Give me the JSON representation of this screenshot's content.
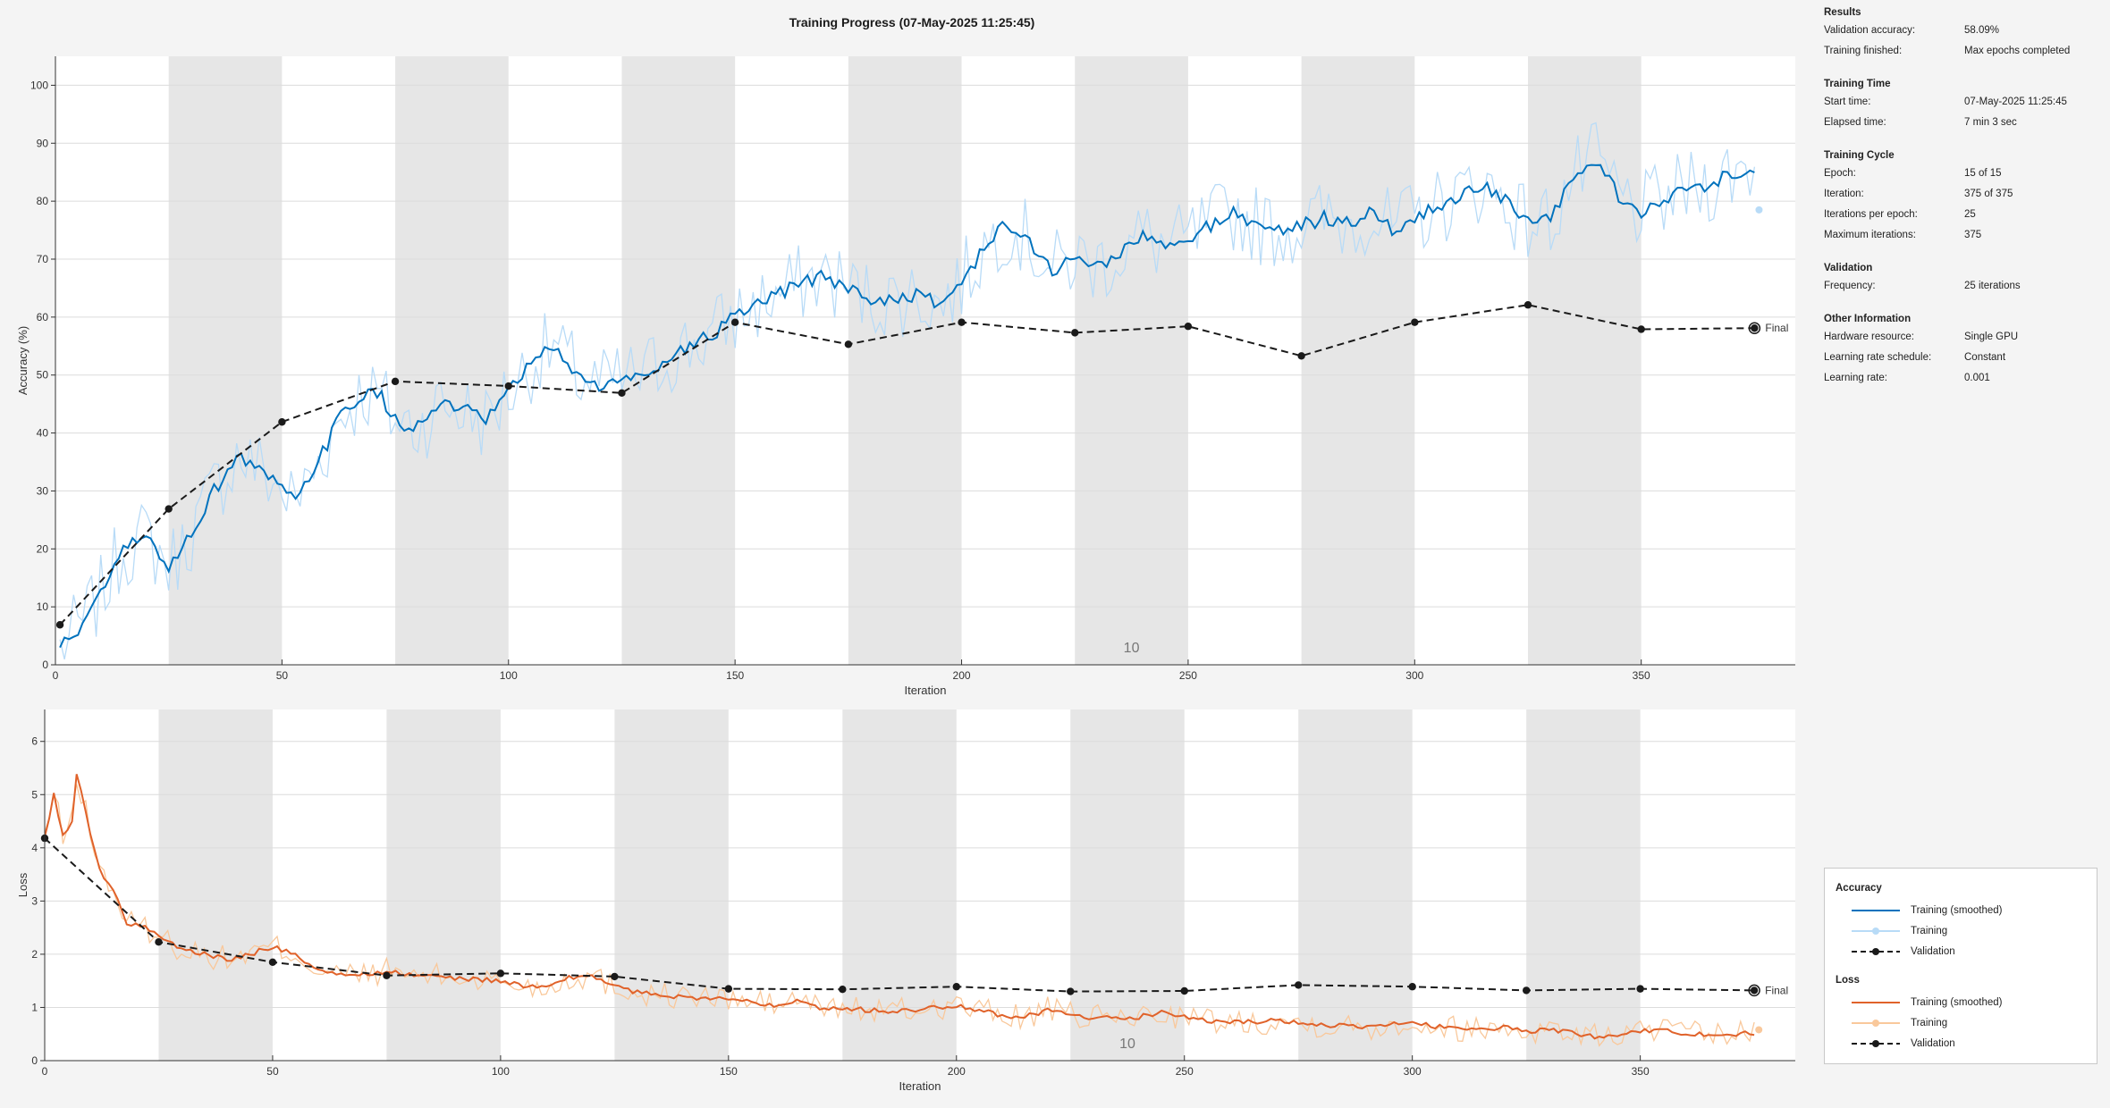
{
  "title": "Training Progress (07-May-2025 11:25:45)",
  "colors": {
    "smoothed_acc": "#0072bd",
    "raw_acc": "#b8dbf7",
    "smoothed_loss": "#e0622a",
    "raw_loss": "#f9c89b",
    "validation": "#1a1a1a",
    "epoch_band": "#e6e6e6",
    "plot_bg": "#ffffff"
  },
  "info": {
    "results": {
      "title": "Results",
      "rows": [
        {
          "k": "Validation accuracy:",
          "v": "58.09%"
        },
        {
          "k": "Training finished:",
          "v": "Max epochs completed"
        }
      ]
    },
    "time": {
      "title": "Training Time",
      "rows": [
        {
          "k": "Start time:",
          "v": "07-May-2025 11:25:45"
        },
        {
          "k": "Elapsed time:",
          "v": "7 min 3 sec"
        }
      ]
    },
    "cycle": {
      "title": "Training Cycle",
      "rows": [
        {
          "k": "Epoch:",
          "v": "15 of 15"
        },
        {
          "k": "Iteration:",
          "v": "375 of 375"
        },
        {
          "k": "Iterations per epoch:",
          "v": "25"
        },
        {
          "k": "Maximum iterations:",
          "v": "375"
        }
      ]
    },
    "validation": {
      "title": "Validation",
      "rows": [
        {
          "k": "Frequency:",
          "v": "25 iterations"
        }
      ]
    },
    "other": {
      "title": "Other Information",
      "rows": [
        {
          "k": "Hardware resource:",
          "v": "Single GPU"
        },
        {
          "k": "Learning rate schedule:",
          "v": "Constant"
        },
        {
          "k": "Learning rate:",
          "v": "0.001"
        }
      ]
    }
  },
  "legend": {
    "acc_title": "Accuracy",
    "loss_title": "Loss",
    "smoothed": "Training (smoothed)",
    "training": "Training",
    "validation": "Validation"
  },
  "chart_data": [
    {
      "type": "line",
      "name": "Accuracy",
      "xlabel": "Iteration",
      "ylabel": "Accuracy (%)",
      "xlim": [
        0,
        384
      ],
      "ylim": [
        0,
        105
      ],
      "xticks": [
        0,
        50,
        100,
        150,
        200,
        250,
        300,
        350
      ],
      "yticks": [
        0,
        10,
        20,
        30,
        40,
        50,
        60,
        70,
        80,
        90,
        100
      ],
      "grid": true,
      "epoch_label": "10",
      "final_label": "Final",
      "epoch_bands": [
        [
          25,
          50
        ],
        [
          75,
          100
        ],
        [
          125,
          150
        ],
        [
          175,
          200
        ],
        [
          225,
          250
        ],
        [
          275,
          300
        ],
        [
          325,
          350
        ]
      ],
      "smoothed_anchors": [
        [
          1,
          3
        ],
        [
          5,
          6
        ],
        [
          10,
          12
        ],
        [
          15,
          20
        ],
        [
          20,
          22
        ],
        [
          25,
          17
        ],
        [
          28,
          20
        ],
        [
          35,
          30
        ],
        [
          40,
          36
        ],
        [
          45,
          34
        ],
        [
          50,
          30
        ],
        [
          53,
          28
        ],
        [
          58,
          35
        ],
        [
          63,
          43
        ],
        [
          68,
          47
        ],
        [
          72,
          46
        ],
        [
          75,
          42
        ],
        [
          80,
          41
        ],
        [
          85,
          45
        ],
        [
          90,
          44
        ],
        [
          95,
          42
        ],
        [
          100,
          47
        ],
        [
          105,
          52
        ],
        [
          110,
          55
        ],
        [
          115,
          50
        ],
        [
          120,
          48
        ],
        [
          125,
          49
        ],
        [
          130,
          50
        ],
        [
          135,
          53
        ],
        [
          140,
          55
        ],
        [
          145,
          57
        ],
        [
          150,
          60
        ],
        [
          155,
          62
        ],
        [
          160,
          64
        ],
        [
          165,
          66
        ],
        [
          170,
          67
        ],
        [
          175,
          65
        ],
        [
          180,
          63
        ],
        [
          185,
          63
        ],
        [
          190,
          64
        ],
        [
          195,
          62
        ],
        [
          200,
          66
        ],
        [
          205,
          72
        ],
        [
          210,
          76
        ],
        [
          215,
          73
        ],
        [
          220,
          68
        ],
        [
          225,
          70
        ],
        [
          230,
          69
        ],
        [
          235,
          71
        ],
        [
          240,
          74
        ],
        [
          245,
          72
        ],
        [
          250,
          73
        ],
        [
          255,
          76
        ],
        [
          260,
          78
        ],
        [
          265,
          76
        ],
        [
          270,
          75
        ],
        [
          275,
          76
        ],
        [
          280,
          77
        ],
        [
          285,
          76
        ],
        [
          290,
          78
        ],
        [
          295,
          75
        ],
        [
          300,
          77
        ],
        [
          305,
          79
        ],
        [
          310,
          81
        ],
        [
          315,
          83
        ],
        [
          320,
          80
        ],
        [
          325,
          76
        ],
        [
          330,
          77
        ],
        [
          335,
          84
        ],
        [
          340,
          87
        ],
        [
          345,
          81
        ],
        [
          350,
          78
        ],
        [
          355,
          80
        ],
        [
          360,
          82
        ],
        [
          365,
          83
        ],
        [
          370,
          85
        ],
        [
          375,
          86
        ]
      ],
      "raw_noise": 7,
      "raw_last": 78.5,
      "validation": {
        "x": [
          1,
          25,
          50,
          75,
          100,
          125,
          150,
          175,
          200,
          225,
          250,
          275,
          300,
          325,
          350,
          375
        ],
        "y": [
          6.9,
          26.9,
          41.9,
          48.9,
          48.1,
          46.9,
          59.1,
          55.3,
          59.1,
          57.3,
          58.4,
          53.3,
          59.1,
          62.1,
          57.9,
          58.09
        ]
      }
    },
    {
      "type": "line",
      "name": "Loss",
      "xlabel": "Iteration",
      "ylabel": "Loss",
      "xlim": [
        0,
        384
      ],
      "ylim": [
        0,
        6.6
      ],
      "xticks": [
        0,
        50,
        100,
        150,
        200,
        250,
        300,
        350
      ],
      "yticks": [
        0,
        1,
        2,
        3,
        4,
        5,
        6
      ],
      "grid": true,
      "epoch_label": "10",
      "final_label": "Final",
      "epoch_bands": [
        [
          25,
          50
        ],
        [
          75,
          100
        ],
        [
          125,
          150
        ],
        [
          175,
          200
        ],
        [
          225,
          250
        ],
        [
          275,
          300
        ],
        [
          325,
          350
        ]
      ],
      "smoothed_anchors": [
        [
          0,
          4.2
        ],
        [
          2,
          5.0
        ],
        [
          4,
          4.2
        ],
        [
          6,
          4.5
        ],
        [
          7,
          5.4
        ],
        [
          10,
          4.3
        ],
        [
          12,
          3.6
        ],
        [
          15,
          3.2
        ],
        [
          18,
          2.6
        ],
        [
          22,
          2.5
        ],
        [
          25,
          2.35
        ],
        [
          30,
          2.1
        ],
        [
          35,
          2.0
        ],
        [
          40,
          1.9
        ],
        [
          45,
          2.0
        ],
        [
          50,
          2.15
        ],
        [
          55,
          2.0
        ],
        [
          60,
          1.7
        ],
        [
          65,
          1.6
        ],
        [
          70,
          1.62
        ],
        [
          75,
          1.68
        ],
        [
          80,
          1.62
        ],
        [
          90,
          1.55
        ],
        [
          100,
          1.5
        ],
        [
          105,
          1.4
        ],
        [
          110,
          1.38
        ],
        [
          115,
          1.55
        ],
        [
          120,
          1.6
        ],
        [
          125,
          1.4
        ],
        [
          130,
          1.28
        ],
        [
          140,
          1.2
        ],
        [
          150,
          1.15
        ],
        [
          155,
          1.1
        ],
        [
          160,
          1.05
        ],
        [
          165,
          1.15
        ],
        [
          170,
          1.0
        ],
        [
          175,
          1.0
        ],
        [
          180,
          0.95
        ],
        [
          190,
          0.93
        ],
        [
          195,
          1.0
        ],
        [
          200,
          1.05
        ],
        [
          205,
          0.95
        ],
        [
          210,
          0.85
        ],
        [
          215,
          0.82
        ],
        [
          220,
          0.95
        ],
        [
          225,
          0.85
        ],
        [
          230,
          0.8
        ],
        [
          240,
          0.82
        ],
        [
          245,
          0.9
        ],
        [
          250,
          0.82
        ],
        [
          255,
          0.75
        ],
        [
          260,
          0.72
        ],
        [
          270,
          0.75
        ],
        [
          275,
          0.72
        ],
        [
          280,
          0.68
        ],
        [
          290,
          0.62
        ],
        [
          300,
          0.72
        ],
        [
          305,
          0.65
        ],
        [
          310,
          0.6
        ],
        [
          320,
          0.62
        ],
        [
          325,
          0.55
        ],
        [
          330,
          0.6
        ],
        [
          340,
          0.45
        ],
        [
          345,
          0.5
        ],
        [
          350,
          0.55
        ],
        [
          355,
          0.6
        ],
        [
          360,
          0.5
        ],
        [
          365,
          0.48
        ],
        [
          370,
          0.5
        ],
        [
          375,
          0.52
        ]
      ],
      "raw_noise": 0.25,
      "raw_last": 0.58,
      "validation": {
        "x": [
          0,
          25,
          50,
          75,
          100,
          125,
          150,
          175,
          200,
          225,
          250,
          275,
          300,
          325,
          350,
          375
        ],
        "y": [
          4.18,
          2.23,
          1.85,
          1.6,
          1.64,
          1.58,
          1.35,
          1.34,
          1.39,
          1.3,
          1.31,
          1.42,
          1.39,
          1.32,
          1.35,
          1.32
        ]
      }
    }
  ]
}
